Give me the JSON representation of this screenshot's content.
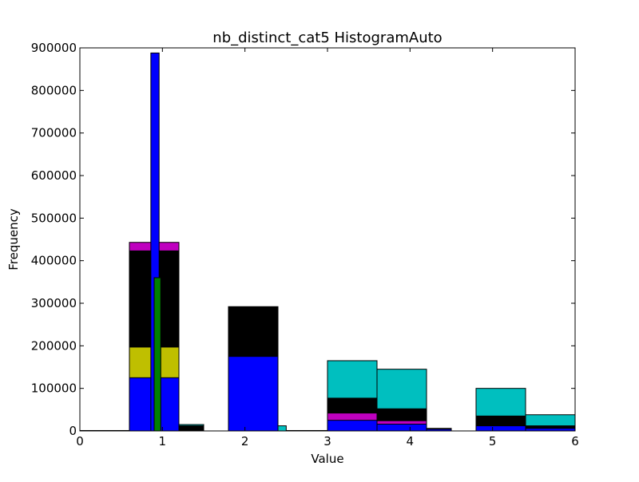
{
  "chart_data": {
    "type": "bar",
    "title": "nb_distinct_cat5 HistogramAuto",
    "xlabel": "Value",
    "ylabel": "Frequency",
    "xlim": [
      0,
      6
    ],
    "ylim": [
      0,
      900000
    ],
    "xticks": [
      "0",
      "1",
      "2",
      "3",
      "4",
      "5",
      "6"
    ],
    "yticks": [
      "0",
      "100000",
      "200000",
      "300000",
      "400000",
      "500000",
      "600000",
      "700000",
      "800000",
      "900000"
    ],
    "grid": false,
    "colors": [
      "#0000ff",
      "#008000",
      "#bfbf00",
      "#000000",
      "#bf00bf",
      "#00bfbf"
    ],
    "bars": [
      {
        "x0": 0.0,
        "x1": 0.6,
        "value": 1000,
        "color": "#ffffff"
      },
      {
        "x0": 0.6,
        "x1": 1.2,
        "value": 443000,
        "color": "#bf00bf"
      },
      {
        "x0": 0.6,
        "x1": 1.2,
        "value": 423000,
        "color": "#000000"
      },
      {
        "x0": 0.6,
        "x1": 1.2,
        "value": 197000,
        "color": "#bfbf00"
      },
      {
        "x0": 0.6,
        "x1": 1.2,
        "value": 125000,
        "color": "#0000ff"
      },
      {
        "x0": 1.2,
        "x1": 1.5,
        "value": 15000,
        "color": "#00bfbf"
      },
      {
        "x0": 1.2,
        "x1": 1.5,
        "value": 12000,
        "color": "#000000"
      },
      {
        "x0": 0.86,
        "x1": 0.96,
        "value": 888000,
        "color": "#0000ff"
      },
      {
        "x0": 0.9,
        "x1": 0.98,
        "value": 360000,
        "color": "#008000"
      },
      {
        "x0": 1.8,
        "x1": 2.4,
        "value": 292000,
        "color": "#000000"
      },
      {
        "x0": 1.8,
        "x1": 2.4,
        "value": 175000,
        "color": "#0000ff"
      },
      {
        "x0": 2.4,
        "x1": 2.5,
        "value": 12000,
        "color": "#00bfbf"
      },
      {
        "x0": 2.5,
        "x1": 3.0,
        "value": 1000,
        "color": "#ffffff"
      },
      {
        "x0": 3.0,
        "x1": 3.6,
        "value": 165000,
        "color": "#00bfbf"
      },
      {
        "x0": 3.0,
        "x1": 3.6,
        "value": 77000,
        "color": "#000000"
      },
      {
        "x0": 3.0,
        "x1": 3.6,
        "value": 42000,
        "color": "#bf00bf"
      },
      {
        "x0": 3.0,
        "x1": 3.6,
        "value": 25000,
        "color": "#0000ff"
      },
      {
        "x0": 3.6,
        "x1": 4.2,
        "value": 145000,
        "color": "#00bfbf"
      },
      {
        "x0": 3.6,
        "x1": 4.2,
        "value": 52000,
        "color": "#000000"
      },
      {
        "x0": 3.6,
        "x1": 4.2,
        "value": 24000,
        "color": "#bf00bf"
      },
      {
        "x0": 3.6,
        "x1": 4.2,
        "value": 16000,
        "color": "#0000ff"
      },
      {
        "x0": 4.2,
        "x1": 4.5,
        "value": 6000,
        "color": "#000000"
      },
      {
        "x0": 4.2,
        "x1": 4.5,
        "value": 4000,
        "color": "#0000ff"
      },
      {
        "x0": 4.8,
        "x1": 5.4,
        "value": 100000,
        "color": "#00bfbf"
      },
      {
        "x0": 4.8,
        "x1": 5.4,
        "value": 35000,
        "color": "#000000"
      },
      {
        "x0": 4.8,
        "x1": 5.4,
        "value": 12000,
        "color": "#0000ff"
      },
      {
        "x0": 5.4,
        "x1": 6.0,
        "value": 38000,
        "color": "#00bfbf"
      },
      {
        "x0": 5.4,
        "x1": 6.0,
        "value": 12000,
        "color": "#000000"
      },
      {
        "x0": 5.4,
        "x1": 6.0,
        "value": 6000,
        "color": "#0000ff"
      }
    ]
  }
}
